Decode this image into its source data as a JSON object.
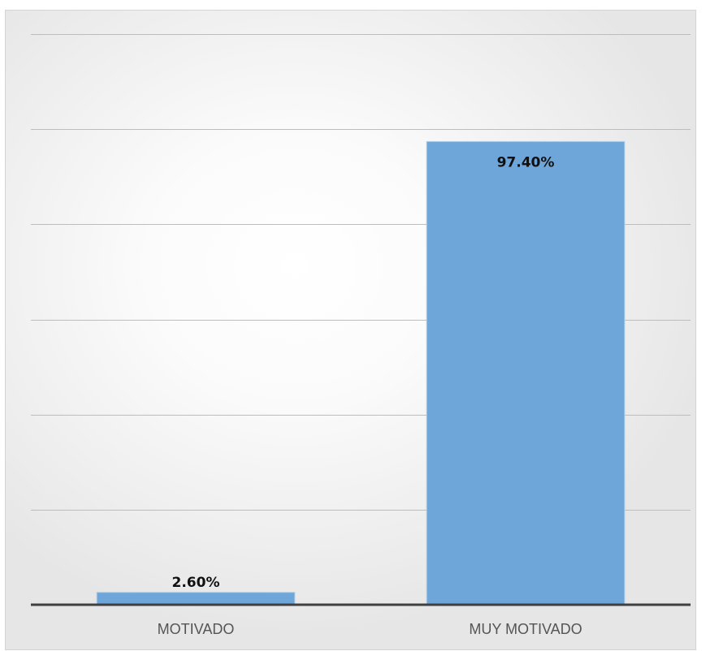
{
  "chart_data": {
    "type": "bar",
    "categories": [
      "MOTIVADO",
      "MUY MOTIVADO"
    ],
    "values": [
      2.6,
      97.4
    ],
    "value_labels": [
      "2.60%",
      "97.40%"
    ],
    "title": "",
    "xlabel": "",
    "ylabel": "",
    "ylim": [
      0,
      120
    ],
    "y_tick_step": 20,
    "grid": true,
    "y_tick_labels_shown": false,
    "legend": "none",
    "colors": {
      "bar": "#6fa6d9",
      "grid": "#bdbdbd",
      "axis": "#404040"
    }
  }
}
